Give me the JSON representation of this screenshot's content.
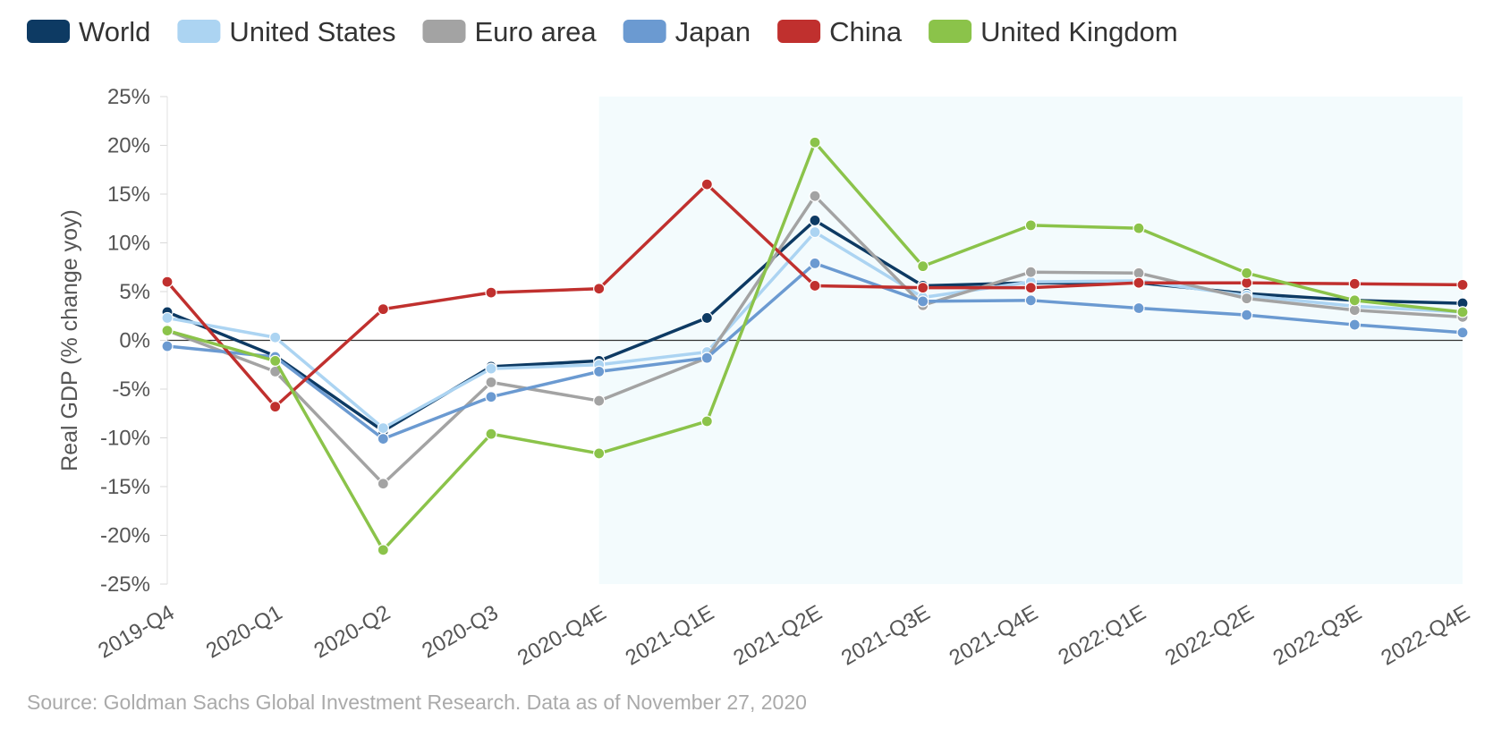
{
  "chart_data": {
    "type": "line",
    "categories": [
      "2019-Q4",
      "2020-Q1",
      "2020-Q2",
      "2020-Q3",
      "2020-Q4E",
      "2021-Q1E",
      "2021-Q2E",
      "2021-Q3E",
      "2021-Q4E",
      "2022:Q1E",
      "2022-Q2E",
      "2022-Q3E",
      "2022-Q4E"
    ],
    "ylabel": "Real GDP (% change yoy)",
    "ylim": [
      -25,
      25
    ],
    "yticks": [
      25,
      20,
      15,
      10,
      5,
      0,
      -5,
      -10,
      -15,
      -20,
      -25
    ],
    "ytick_labels": [
      "25%",
      "20%",
      "15%",
      "10%",
      "5%",
      "0%",
      "-5%",
      "-10%",
      "-15%",
      "-20%",
      "-25%"
    ],
    "shaded_region": {
      "from": "2020-Q4E",
      "to": "2022-Q4E",
      "color": "#f3fbfd"
    },
    "zero_line": true,
    "legend_position": "top",
    "series": [
      {
        "name": "World",
        "color": "#0d3a63",
        "values": [
          2.9,
          -1.6,
          -9.3,
          -2.7,
          -2.1,
          2.3,
          12.3,
          5.6,
          5.9,
          5.9,
          4.8,
          4.1,
          3.8
        ]
      },
      {
        "name": "United States",
        "color": "#acd4f2",
        "values": [
          2.3,
          0.3,
          -9.0,
          -2.9,
          -2.5,
          -1.2,
          11.1,
          4.4,
          6.0,
          6.1,
          4.6,
          3.5,
          2.9
        ]
      },
      {
        "name": "Euro area",
        "color": "#a3a3a3",
        "values": [
          1.0,
          -3.2,
          -14.7,
          -4.3,
          -6.2,
          -1.8,
          14.8,
          3.6,
          7.0,
          6.9,
          4.3,
          3.1,
          2.4
        ]
      },
      {
        "name": "Japan",
        "color": "#6b9ad1",
        "values": [
          -0.6,
          -1.7,
          -10.1,
          -5.8,
          -3.2,
          -1.8,
          7.9,
          4.0,
          4.1,
          3.3,
          2.6,
          1.6,
          0.8
        ]
      },
      {
        "name": "China",
        "color": "#c0302e",
        "values": [
          6.0,
          -6.8,
          3.2,
          4.9,
          5.3,
          16.0,
          5.6,
          5.4,
          5.4,
          5.9,
          5.9,
          5.8,
          5.7
        ]
      },
      {
        "name": "United Kingdom",
        "color": "#8bc34a",
        "values": [
          1.0,
          -2.1,
          -21.5,
          -9.6,
          -11.6,
          -8.3,
          20.3,
          7.6,
          11.8,
          11.5,
          6.9,
          4.1,
          2.9
        ]
      }
    ]
  },
  "source": "Source: Goldman Sachs Global Investment Research. Data as of November 27, 2020"
}
